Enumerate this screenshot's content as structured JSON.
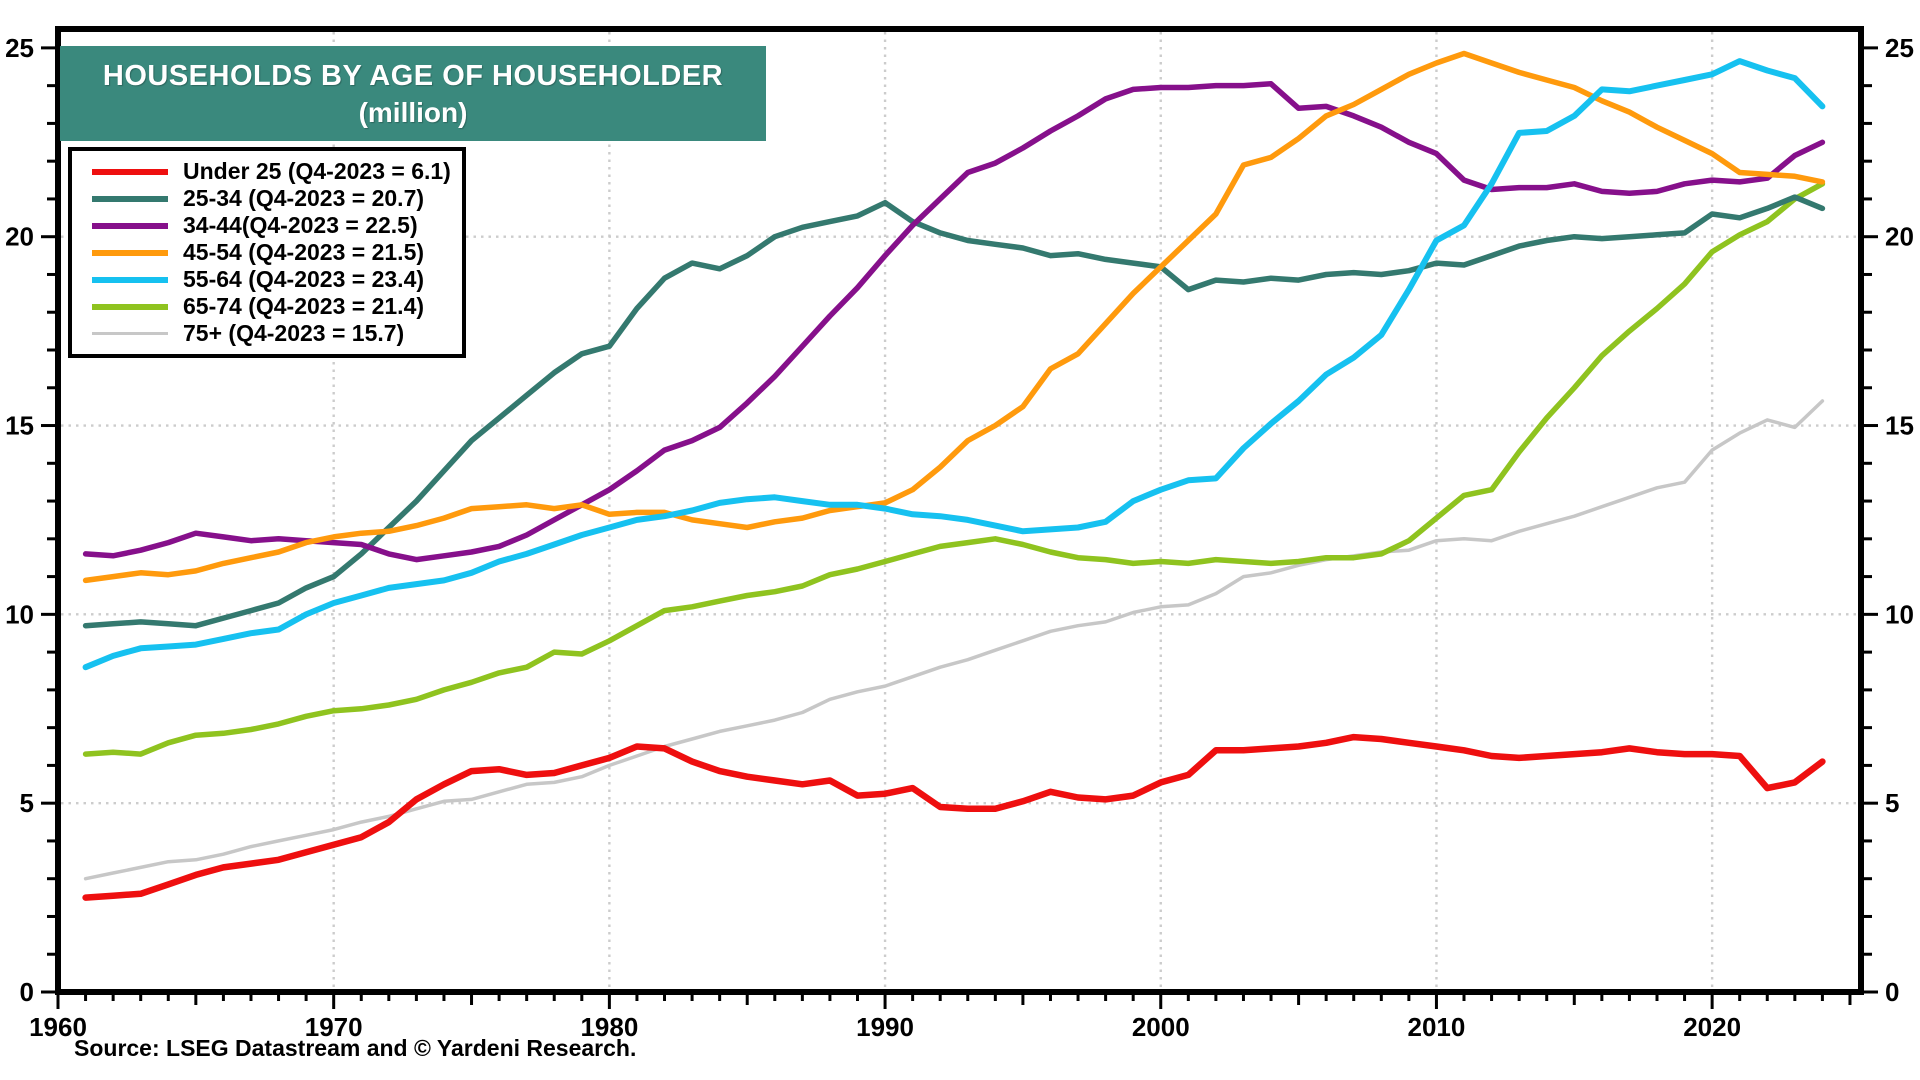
{
  "chart_data": {
    "type": "line",
    "title": "HOUSEHOLDS BY AGE OF HOUSEHOLDER",
    "subtitle": "(million)",
    "source": "Source: LSEG Datastream and © Yardeni Research.",
    "title_bg_color": "#3A897D",
    "grid": {
      "style": "dotted",
      "color": "#cccccc",
      "h_lines": [
        5,
        10,
        15,
        20
      ],
      "v_lines": [
        1970,
        1980,
        1990,
        2000,
        2010,
        2020
      ]
    },
    "x_axis": {
      "min": 1960,
      "max": 2025.4,
      "ticks": [
        1960,
        1970,
        1980,
        1990,
        2000,
        2010,
        2020
      ],
      "minor_tick_interval": 1
    },
    "y_axis": {
      "min": 0,
      "max": 25.5,
      "ticks": [
        0,
        5,
        10,
        15,
        20,
        25
      ],
      "minor_tick_interval": 1,
      "label_side": "both"
    },
    "years": [
      1961,
      1962,
      1963,
      1964,
      1965,
      1966,
      1967,
      1968,
      1969,
      1970,
      1971,
      1972,
      1973,
      1974,
      1975,
      1976,
      1977,
      1978,
      1979,
      1980,
      1981,
      1982,
      1983,
      1984,
      1985,
      1986,
      1987,
      1988,
      1989,
      1990,
      1991,
      1992,
      1993,
      1994,
      1995,
      1996,
      1997,
      1998,
      1999,
      2000,
      2001,
      2002,
      2003,
      2004,
      2005,
      2006,
      2007,
      2008,
      2009,
      2010,
      2011,
      2012,
      2013,
      2014,
      2015,
      2016,
      2017,
      2018,
      2019,
      2020,
      2021,
      2022,
      2023,
      2024
    ],
    "series": [
      {
        "name": "under-25",
        "label": "Under 25 (Q4-2023 = 6.1)",
        "color": "#EE0F0F",
        "width": 6.5,
        "values": [
          2.5,
          2.55,
          2.6,
          2.85,
          3.1,
          3.3,
          3.4,
          3.5,
          3.7,
          3.9,
          4.1,
          4.5,
          5.1,
          5.5,
          5.85,
          5.9,
          5.75,
          5.8,
          6.0,
          6.2,
          6.5,
          6.45,
          6.1,
          5.85,
          5.7,
          5.6,
          5.5,
          5.6,
          5.2,
          5.25,
          5.4,
          4.9,
          4.85,
          4.85,
          5.05,
          5.3,
          5.15,
          5.1,
          5.2,
          5.55,
          5.75,
          6.4,
          6.4,
          6.45,
          6.5,
          6.6,
          6.75,
          6.7,
          6.6,
          6.5,
          6.4,
          6.25,
          6.2,
          6.25,
          6.3,
          6.35,
          6.45,
          6.35,
          6.3,
          6.3,
          6.25,
          5.4,
          5.55,
          6.1
        ]
      },
      {
        "name": "25-34",
        "label": "25-34 (Q4-2023 = 20.7)",
        "color": "#34796F",
        "width": 5.5,
        "values": [
          9.7,
          9.75,
          9.8,
          9.75,
          9.7,
          9.9,
          10.1,
          10.3,
          10.7,
          11.0,
          11.6,
          12.3,
          13.0,
          13.8,
          14.6,
          15.2,
          15.8,
          16.4,
          16.9,
          17.1,
          18.1,
          18.9,
          19.3,
          19.15,
          19.5,
          20.0,
          20.25,
          20.4,
          20.55,
          20.9,
          20.4,
          20.1,
          19.9,
          19.8,
          19.7,
          19.5,
          19.55,
          19.4,
          19.3,
          19.2,
          18.6,
          18.85,
          18.8,
          18.9,
          18.85,
          19.0,
          19.05,
          19.0,
          19.1,
          19.3,
          19.25,
          19.5,
          19.75,
          19.9,
          20.0,
          19.95,
          20.0,
          20.05,
          20.1,
          20.6,
          20.5,
          20.75,
          21.05,
          20.75
        ]
      },
      {
        "name": "34-44",
        "label": "34-44(Q4-2023 = 22.5)",
        "color": "#86108B",
        "width": 5.5,
        "values": [
          11.6,
          11.55,
          11.7,
          11.9,
          12.15,
          12.05,
          11.95,
          12.0,
          11.95,
          11.9,
          11.85,
          11.6,
          11.45,
          11.55,
          11.65,
          11.8,
          12.1,
          12.5,
          12.9,
          13.3,
          13.8,
          14.35,
          14.6,
          14.95,
          15.6,
          16.3,
          17.1,
          17.9,
          18.65,
          19.5,
          20.3,
          21.0,
          21.7,
          21.95,
          22.35,
          22.8,
          23.2,
          23.65,
          23.9,
          23.95,
          23.95,
          24.0,
          24.0,
          24.05,
          23.4,
          23.45,
          23.2,
          22.9,
          22.5,
          22.2,
          21.5,
          21.25,
          21.3,
          21.3,
          21.4,
          21.2,
          21.15,
          21.2,
          21.4,
          21.5,
          21.45,
          21.55,
          22.15,
          22.5
        ]
      },
      {
        "name": "45-54",
        "label": "45-54 (Q4-2023 = 21.5)",
        "color": "#FF9A0D",
        "width": 5.5,
        "values": [
          10.9,
          11.0,
          11.1,
          11.05,
          11.15,
          11.35,
          11.5,
          11.65,
          11.9,
          12.05,
          12.15,
          12.2,
          12.35,
          12.55,
          12.8,
          12.85,
          12.9,
          12.8,
          12.9,
          12.65,
          12.7,
          12.7,
          12.5,
          12.4,
          12.3,
          12.45,
          12.55,
          12.75,
          12.85,
          12.95,
          13.3,
          13.9,
          14.6,
          15.0,
          15.5,
          16.5,
          16.9,
          17.7,
          18.5,
          19.2,
          19.9,
          20.6,
          21.9,
          22.1,
          22.6,
          23.2,
          23.5,
          23.9,
          24.3,
          24.6,
          24.85,
          24.6,
          24.35,
          24.15,
          23.95,
          23.6,
          23.3,
          22.9,
          22.55,
          22.2,
          21.7,
          21.65,
          21.6,
          21.45
        ]
      },
      {
        "name": "55-64",
        "label": "55-64 (Q4-2023 = 23.4)",
        "color": "#16C1F0",
        "width": 6,
        "values": [
          8.6,
          8.9,
          9.1,
          9.15,
          9.2,
          9.35,
          9.5,
          9.6,
          10.0,
          10.3,
          10.5,
          10.7,
          10.8,
          10.9,
          11.1,
          11.4,
          11.6,
          11.85,
          12.1,
          12.3,
          12.5,
          12.6,
          12.75,
          12.95,
          13.05,
          13.1,
          13.0,
          12.9,
          12.9,
          12.8,
          12.65,
          12.6,
          12.5,
          12.35,
          12.2,
          12.25,
          12.3,
          12.45,
          13.0,
          13.3,
          13.55,
          13.6,
          14.4,
          15.05,
          15.65,
          16.35,
          16.8,
          17.4,
          18.6,
          19.9,
          20.3,
          21.4,
          22.75,
          22.8,
          23.2,
          23.9,
          23.85,
          24.0,
          24.15,
          24.3,
          24.65,
          24.4,
          24.2,
          23.45
        ]
      },
      {
        "name": "65-74",
        "label": "65-74 (Q4-2023 = 21.4)",
        "color": "#8FC31F",
        "width": 5.5,
        "values": [
          6.3,
          6.35,
          6.3,
          6.6,
          6.8,
          6.85,
          6.95,
          7.1,
          7.3,
          7.45,
          7.5,
          7.6,
          7.75,
          8.0,
          8.2,
          8.45,
          8.6,
          9.0,
          8.95,
          9.3,
          9.7,
          10.1,
          10.2,
          10.35,
          10.5,
          10.6,
          10.75,
          11.05,
          11.2,
          11.4,
          11.6,
          11.8,
          11.9,
          12.0,
          11.85,
          11.65,
          11.5,
          11.45,
          11.35,
          11.4,
          11.35,
          11.45,
          11.4,
          11.35,
          11.4,
          11.5,
          11.5,
          11.6,
          11.95,
          12.55,
          13.15,
          13.3,
          14.3,
          15.2,
          16.0,
          16.85,
          17.5,
          18.1,
          18.75,
          19.6,
          20.05,
          20.4,
          21.0,
          21.4
        ]
      },
      {
        "name": "75plus",
        "label": "75+ (Q4-2023 = 15.7)",
        "color": "#C7C7C7",
        "width": 3.5,
        "values": [
          3.0,
          3.15,
          3.3,
          3.45,
          3.5,
          3.65,
          3.85,
          4.0,
          4.15,
          4.3,
          4.5,
          4.65,
          4.85,
          5.05,
          5.1,
          5.3,
          5.5,
          5.55,
          5.7,
          6.0,
          6.25,
          6.5,
          6.7,
          6.9,
          7.05,
          7.2,
          7.4,
          7.75,
          7.95,
          8.1,
          8.35,
          8.6,
          8.8,
          9.05,
          9.3,
          9.55,
          9.7,
          9.8,
          10.05,
          10.2,
          10.25,
          10.55,
          11.0,
          11.1,
          11.3,
          11.45,
          11.55,
          11.65,
          11.7,
          11.95,
          12.0,
          11.95,
          12.2,
          12.4,
          12.6,
          12.85,
          13.1,
          13.35,
          13.5,
          14.35,
          14.8,
          15.15,
          14.95,
          15.65
        ]
      }
    ]
  }
}
